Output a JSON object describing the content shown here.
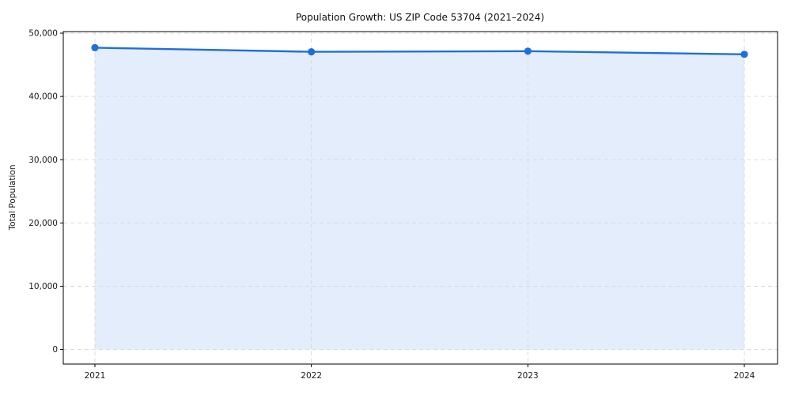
{
  "chart_data": {
    "type": "line",
    "title": "Population Growth: US ZIP Code 53704 (2021–2024)",
    "xlabel": "",
    "ylabel": "Total Population",
    "x": [
      2021,
      2022,
      2023,
      2024
    ],
    "xtick_labels": [
      "2021",
      "2022",
      "2023",
      "2024"
    ],
    "series": [
      {
        "name": "Total Population",
        "values": [
          47700,
          47050,
          47150,
          46650
        ]
      }
    ],
    "area_fill": true,
    "fill_baseline": 0,
    "ylim": [
      -2300,
      50250
    ],
    "yticks": [
      0,
      10000,
      20000,
      30000,
      40000,
      50000
    ],
    "ytick_labels": [
      "0",
      "10,000",
      "20,000",
      "30,000",
      "40,000",
      "50,000"
    ],
    "grid": "both-dashed",
    "legend": "none",
    "colors": {
      "line": "#1f6fdb",
      "marker": "#1f6fdb",
      "fill": "rgba(31,111,219,0.12)",
      "grid": "#d8d8d8",
      "axis": "#000000",
      "background": "#ffffff"
    }
  }
}
